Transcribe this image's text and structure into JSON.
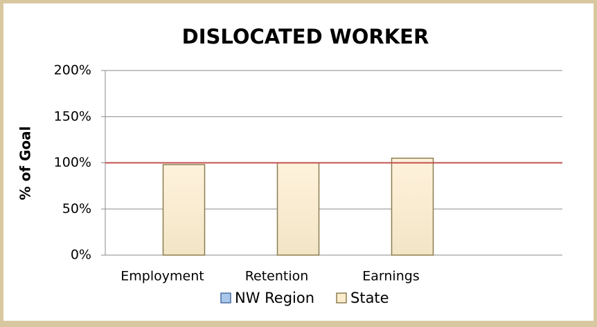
{
  "chart_data": {
    "type": "bar",
    "title": "DISLOCATED WORKER",
    "y_label": "% of Goal",
    "categories": [
      "Employment",
      "Retention",
      "Earnings",
      null
    ],
    "series": [
      {
        "name": "NW Region",
        "color": "#a9c8ea",
        "values": [
          null,
          null,
          null,
          null
        ]
      },
      {
        "name": "State",
        "color": "#fbeccd",
        "values": [
          98,
          100,
          105,
          null
        ]
      }
    ],
    "reference_line": {
      "value": 100,
      "color": "#c0504d"
    },
    "ylim": [
      0,
      200
    ],
    "yticks": [
      {
        "value": 0,
        "label": "0%"
      },
      {
        "value": 50,
        "label": "50%"
      },
      {
        "value": 100,
        "label": "100%"
      },
      {
        "value": 150,
        "label": "150%"
      },
      {
        "value": 200,
        "label": "200%"
      }
    ],
    "grid": true,
    "legend": "bottom"
  }
}
